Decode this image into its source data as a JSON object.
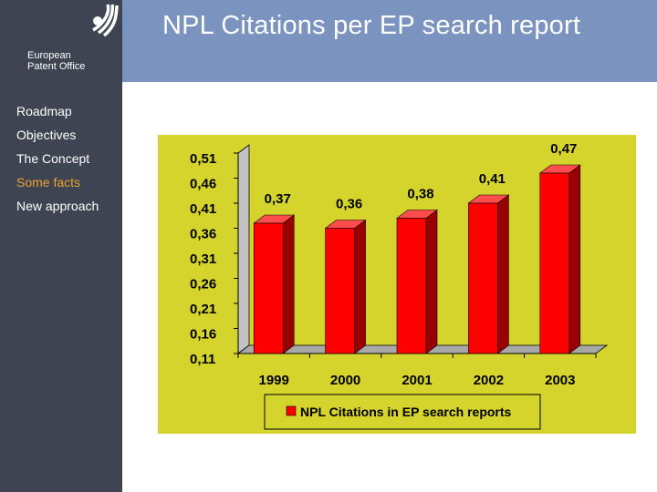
{
  "header": {
    "title": "NPL Citations per EP search report"
  },
  "logo": {
    "name": "epo-logo-icon",
    "org_line1": "European",
    "org_line2": "Patent Office"
  },
  "sidebar": {
    "items": [
      {
        "label": "Roadmap",
        "active": false
      },
      {
        "label": "Objectives",
        "active": false
      },
      {
        "label": "The Concept",
        "active": false
      },
      {
        "label": "Some facts",
        "active": true
      },
      {
        "label": "New approach",
        "active": false
      }
    ]
  },
  "colors": {
    "sidebar": "#3e4452",
    "header": "#7b93bf",
    "active_item": "#f0a030",
    "chart_background": "#d4d42c",
    "bar": "#ff0000"
  },
  "chart_data": {
    "type": "bar",
    "title": "",
    "xlabel": "",
    "ylabel": "",
    "categories": [
      "1999",
      "2000",
      "2001",
      "2002",
      "2003"
    ],
    "series": [
      {
        "name": "NPL Citations in EP search reports",
        "values": [
          0.37,
          0.36,
          0.38,
          0.41,
          0.47
        ]
      }
    ],
    "value_labels": [
      "0,37",
      "0,36",
      "0,38",
      "0,41",
      "0,47"
    ],
    "y_ticks": [
      0.11,
      0.16,
      0.21,
      0.26,
      0.31,
      0.36,
      0.41,
      0.46,
      0.51
    ],
    "y_tick_labels": [
      "0,11",
      "0,16",
      "0,21",
      "0,26",
      "0,31",
      "0,36",
      "0,41",
      "0,46",
      "0,51"
    ],
    "ylim": [
      0.11,
      0.51
    ],
    "grid": false,
    "style": "3d",
    "legend_position": "bottom"
  }
}
